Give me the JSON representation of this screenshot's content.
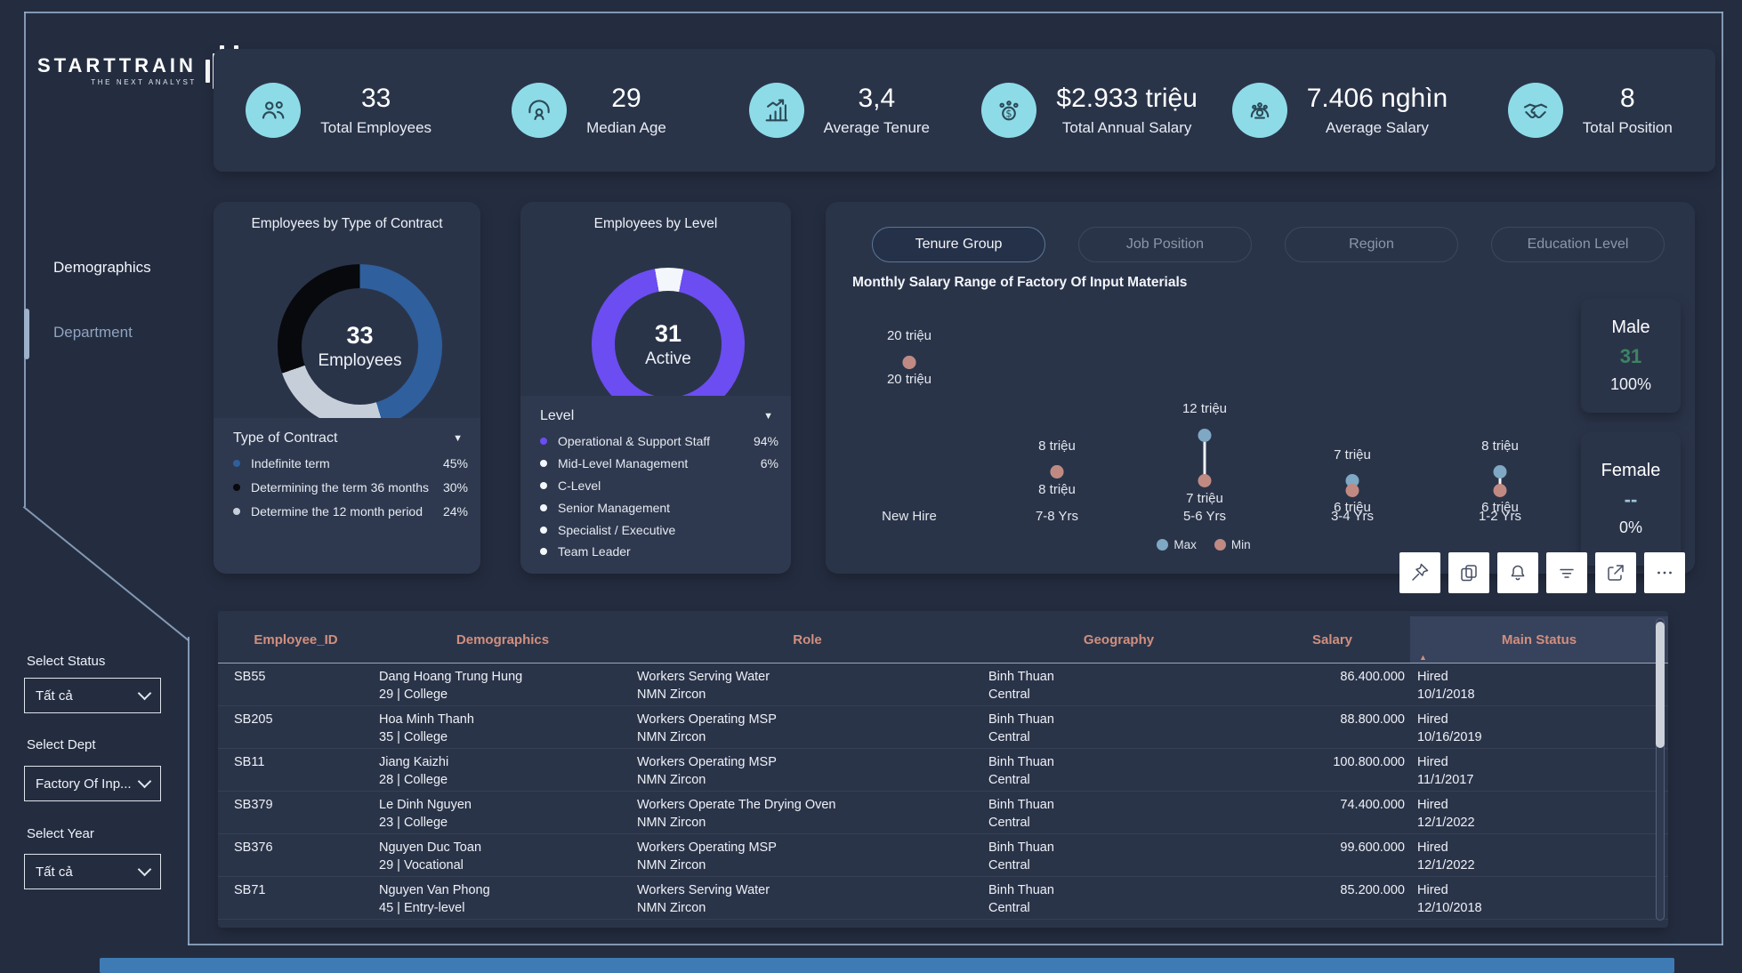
{
  "app": {
    "brand": "STARTTRAIN",
    "brand_sub": "THE NEXT ANALYST"
  },
  "kpis": [
    {
      "icon": "users",
      "value": "33",
      "label": "Total Employees"
    },
    {
      "icon": "person-age",
      "value": "29",
      "label": "Median Age"
    },
    {
      "icon": "growth-chart",
      "value": "3,4",
      "label": "Average Tenure"
    },
    {
      "icon": "salary-coins",
      "value": "$2.933 triệu",
      "label": "Total Annual Salary"
    },
    {
      "icon": "salary-badge",
      "value": "7.406 nghìn",
      "label": "Average Salary"
    },
    {
      "icon": "handshake",
      "value": "8",
      "label": "Total Position"
    }
  ],
  "sidebar": {
    "nav": [
      {
        "label": "Demographics",
        "active": false
      },
      {
        "label": "Department",
        "active": true
      }
    ],
    "filters": [
      {
        "label": "Select Status",
        "value": "Tất cả"
      },
      {
        "label": "Select Dept",
        "value": "Factory Of Inp..."
      },
      {
        "label": "Select Year",
        "value": "Tất cả"
      }
    ]
  },
  "chart_data": [
    {
      "type": "donut",
      "title": "Employees by Type of Contract",
      "center_value": "33",
      "center_label": "Employees",
      "legend_title": "Type of Contract",
      "segments": [
        {
          "label": "Indefinite term",
          "pct": "45%",
          "value": 45.45,
          "color": "#2f5f9d"
        },
        {
          "label": "Determining the term 36 months",
          "pct": "30%",
          "value": 30.3,
          "color": "#07090d"
        },
        {
          "label": "Determine the 12 month period",
          "pct": "24%",
          "value": 24.24,
          "color": "#c6cfd9"
        }
      ],
      "conic_order": [
        0,
        2,
        1
      ],
      "conic_from": 0
    },
    {
      "type": "donut",
      "title": "Employees by Level",
      "center_value": "31",
      "center_label": "Active",
      "legend_title": "Level",
      "segments": [
        {
          "label": "Operational & Support Staff",
          "pct": "94%",
          "value": 94,
          "color": "#6b4df2"
        },
        {
          "label": "Mid-Level Management",
          "pct": "6%",
          "value": 6,
          "color": "#f3f6fa"
        },
        {
          "label": "C-Level",
          "pct": "",
          "value": 0,
          "color": "#f3f6fa"
        },
        {
          "label": "Senior Management",
          "pct": "",
          "value": 0,
          "color": "#f3f6fa"
        },
        {
          "label": "Specialist / Executive",
          "pct": "",
          "value": 0,
          "color": "#f3f6fa"
        },
        {
          "label": "Team Leader",
          "pct": "",
          "value": 0,
          "color": "#f3f6fa"
        }
      ],
      "conic_order": [
        1,
        0
      ],
      "conic_from": -10
    },
    {
      "type": "dumbbell",
      "title": "Monthly Salary Range of Factory Of Input Materials",
      "tabs": [
        {
          "label": "Tenure Group",
          "active": true
        },
        {
          "label": "Job Position",
          "active": false
        },
        {
          "label": "Region",
          "active": false
        },
        {
          "label": "Education Level",
          "active": false
        }
      ],
      "unit": "triệu",
      "groups": [
        {
          "category": "New Hire",
          "max": 20,
          "min": 20,
          "max_label": "20 triệu",
          "min_label": "20 triệu"
        },
        {
          "category": "7-8 Yrs",
          "max": 8,
          "min": 8,
          "max_label": "8 triệu",
          "min_label": "8 triệu"
        },
        {
          "category": "5-6 Yrs",
          "max": 12,
          "min": 7,
          "max_label": "12 triệu",
          "min_label": "7 triệu"
        },
        {
          "category": "3-4 Yrs",
          "max": 7,
          "min": 6,
          "max_label": "7 triệu",
          "min_label": "6 triệu"
        },
        {
          "category": "1-2 Yrs",
          "max": 8,
          "min": 6,
          "max_label": "8 triệu",
          "min_label": "6 triệu"
        }
      ],
      "legend": [
        {
          "label": "Max",
          "color": "#7fa8c4"
        },
        {
          "label": "Min",
          "color": "#c08a82"
        }
      ]
    }
  ],
  "gender_cards": [
    {
      "label": "Male",
      "value": "31",
      "pct": "100%",
      "value_color": "#3d8463"
    },
    {
      "label": "Female",
      "value": "--",
      "pct": "0%",
      "value_color": "#9fc3d8"
    }
  ],
  "toolbar": [
    "pin",
    "copy",
    "bell",
    "filter",
    "popout",
    "more"
  ],
  "table": {
    "columns": [
      "Employee_ID",
      "Demographics",
      "Role",
      "Geography",
      "Salary",
      "Main Status"
    ],
    "sorted_column": "Main Status",
    "sort_direction": "ascending",
    "rows": [
      {
        "id": "SB55",
        "name": "Dang Hoang Trung Hung",
        "meta": "29 | College",
        "role": "Workers Serving Water",
        "company": "NMN Zircon",
        "region": "Binh Thuan",
        "area": "Central",
        "salary": "86.400.000",
        "status": "Hired",
        "date": "10/1/2018"
      },
      {
        "id": "SB205",
        "name": "Hoa Minh Thanh",
        "meta": "35 | College",
        "role": "Workers Operating MSP",
        "company": "NMN Zircon",
        "region": "Binh Thuan",
        "area": "Central",
        "salary": "88.800.000",
        "status": "Hired",
        "date": "10/16/2019"
      },
      {
        "id": "SB11",
        "name": "Jiang Kaizhi",
        "meta": "28 | College",
        "role": "Workers Operating MSP",
        "company": "NMN Zircon",
        "region": "Binh Thuan",
        "area": "Central",
        "salary": "100.800.000",
        "status": "Hired",
        "date": "11/1/2017"
      },
      {
        "id": "SB379",
        "name": "Le Dinh Nguyen",
        "meta": "23 | College",
        "role": "Workers Operate The Drying Oven",
        "company": "NMN Zircon",
        "region": "Binh Thuan",
        "area": "Central",
        "salary": "74.400.000",
        "status": "Hired",
        "date": "12/1/2022"
      },
      {
        "id": "SB376",
        "name": "Nguyen Duc Toan",
        "meta": "29 | Vocational",
        "role": "Workers Operating MSP",
        "company": "NMN Zircon",
        "region": "Binh Thuan",
        "area": "Central",
        "salary": "99.600.000",
        "status": "Hired",
        "date": "12/1/2022"
      },
      {
        "id": "SB71",
        "name": "Nguyen Van Phong",
        "meta": "45 | Entry-level",
        "role": "Workers Serving Water",
        "company": "NMN Zircon",
        "region": "Binh Thuan",
        "area": "Central",
        "salary": "85.200.000",
        "status": "Hired",
        "date": "12/10/2018"
      }
    ]
  }
}
